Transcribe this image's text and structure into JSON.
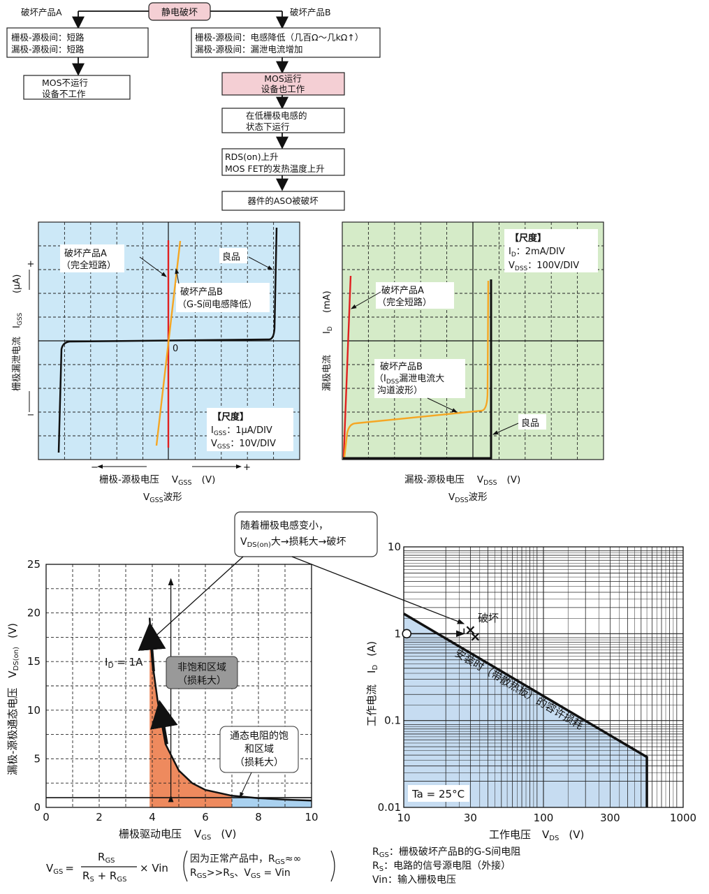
{
  "flow": {
    "top_label": "静电破坏",
    "branch_a": "破坏产品A",
    "branch_b": "破坏产品B",
    "a_box1_line1": "栅极-源极间：短路",
    "a_box1_line2": "漏极-源极间：短路",
    "a_box2_line1": "MOS不运行",
    "a_box2_line2": "设备不工作",
    "b_box1_line1": "栅极-源极间：电感降低（几百Ω～几kΩ↑）",
    "b_box1_line2": "漏极-源极间：漏泄电流增加",
    "b_box2_line1": "MOS运行",
    "b_box2_line2": "设备也工作",
    "b_box3_line1": "在低栅极电感的",
    "b_box3_line2": "状态下运行",
    "b_box4_line1": "RDS(on)上升",
    "b_box4_line2": "MOS FET的发热温度上升",
    "b_box5": "器件的ASO被破坏"
  },
  "vgss_panel": {
    "label_a_line1": "破坏产品A",
    "label_a_line2": "（完全短路）",
    "label_good": "良品",
    "label_b_line1": "破坏产品B",
    "label_b_line2": "（G-S间电感降低）",
    "zero": "0",
    "plus": "+",
    "minus": "−",
    "ylabel_main": "栅极漏泄电流",
    "ylabel_sym": "I",
    "ylabel_sub": "GSS",
    "ylabel_unit": "(μA)",
    "scale_title": "【尺度】",
    "scale_line1_sym": "I",
    "scale_line1_sub": "GSS",
    "scale_line1_val": "：1μA/DIV",
    "scale_line2_sym": "V",
    "scale_line2_sub": "GSS",
    "scale_line2_val": "：10V/DIV",
    "x_minus": "−",
    "x_plus": "+",
    "xlabel_main": "栅极-源极电压",
    "xlabel_sym": "V",
    "xlabel_sub": "GSS",
    "xlabel_unit": "(V)",
    "caption_sym": "V",
    "caption_sub": "GSS",
    "caption_rest": "波形",
    "colors": {
      "bg": "#cce8f7",
      "red": "#e02020",
      "orange": "#f5a623"
    }
  },
  "vdss_panel": {
    "scale_title": "【尺度】",
    "scale_line1_sym": "I",
    "scale_line1_sub": "D",
    "scale_line1_val": "：2mA/DIV",
    "scale_line2_sym": "V",
    "scale_line2_sub": "DSS",
    "scale_line2_val": "：100V/DIV",
    "label_a_line1": "破坏产品A",
    "label_a_line2": "（完全短路）",
    "label_b_line1": "破坏产品B",
    "label_b_line2_sym": "（I",
    "label_b_line2_sub": "DSS",
    "label_b_line2_rest": "漏泄电流大",
    "label_b_line3": "沟道波形）",
    "label_good": "良品",
    "ylabel_main": "漏极电流",
    "ylabel_sym": "I",
    "ylabel_sub": "D",
    "ylabel_unit": "(mA)",
    "xlabel_main": "漏极-源极电压",
    "xlabel_sym": "V",
    "xlabel_sub": "DSS",
    "xlabel_unit": "(V)",
    "caption_sym": "V",
    "caption_sub": "DSS",
    "caption_rest": "波形",
    "colors": {
      "bg": "#d5ebc8",
      "red": "#e02020",
      "orange": "#f5a623"
    }
  },
  "callout_top": {
    "line1": "随着栅极电感变小，",
    "line2_sym": "V",
    "line2_sub": "DS(on)",
    "line2_rest": "大→损耗大→破坏"
  },
  "chart_data": [
    {
      "type": "line",
      "xlabel_main": "栅极驱动电压",
      "xlabel_sym": "V",
      "xlabel_sub": "GS",
      "xlabel_unit": "(V)",
      "ylabel_main": "漏极-源极通态电压",
      "ylabel_sym": "V",
      "ylabel_sub": "DS(on)",
      "ylabel_unit": "(V)",
      "xlim": [
        0,
        10
      ],
      "ylim": [
        0,
        25
      ],
      "xticks": [
        "0",
        "2",
        "4",
        "6",
        "8",
        "10"
      ],
      "yticks": [
        "0",
        "5",
        "10",
        "15",
        "20",
        "25"
      ],
      "series": [
        {
          "name": "I_D = 1A",
          "x": [
            3.9,
            4.0,
            4.2,
            4.5,
            5.0,
            5.5,
            6.0,
            7.0,
            8.0,
            9.0,
            10.0
          ],
          "y": [
            19.5,
            15.0,
            11.0,
            6.5,
            3.8,
            2.5,
            1.8,
            1.2,
            0.95,
            0.8,
            0.7
          ]
        }
      ],
      "hline": 1.0,
      "id_label_sym": "I",
      "id_label_sub": "D",
      "id_label_rest": " = 1A",
      "region1_line1": "非饱和区域",
      "region1_line2": "（损耗大）",
      "region2_line1": "通态电阻的饱",
      "region2_line2": "和区域",
      "region2_line3": "（损耗大）",
      "colors": {
        "orange_fill": "#ee8a5e",
        "blue_fill": "#a9d1ef"
      }
    },
    {
      "type": "line",
      "scale": "log-log",
      "xlabel_main": "工作电压",
      "xlabel_sym": "V",
      "xlabel_sub": "DS",
      "xlabel_unit": "(V)",
      "ylabel_main": "工作电流",
      "ylabel_sym": "I",
      "ylabel_sub": "D",
      "ylabel_unit": "(A)",
      "xlim": [
        10,
        1000
      ],
      "ylim": [
        0.01,
        10
      ],
      "xticks": [
        "10",
        "30",
        "100",
        "300",
        "1000"
      ],
      "yticks": [
        "0.01",
        "0.1",
        "1",
        "10"
      ],
      "series": [
        {
          "name": "安装时（带散热板）的容许损耗",
          "x": [
            10,
            550,
            550
          ],
          "y": [
            1.7,
            0.038,
            0.01
          ]
        }
      ],
      "point_ok": {
        "x": 10.5,
        "y": 1.0
      },
      "point_break": {
        "x": 30,
        "y": 1.1
      },
      "break_label": "破坏",
      "ta_label": "Ta = 25°C",
      "colors": {
        "fill": "#c6dcf1"
      }
    }
  ],
  "formula": {
    "lhs_sym": "V",
    "lhs_sub": "GS",
    "eq": "=",
    "num_sym": "R",
    "num_sub": "GS",
    "den_1_sym": "R",
    "den_1_sub": "S",
    "den_plus": " + ",
    "den_2_sym": "R",
    "den_2_sub": "GS",
    "times": "× Vin",
    "note1_a": "因为正常产品中，R",
    "note1_sub": "GS",
    "note1_b": "≈∞",
    "note2_a": "R",
    "note2_sub1": "GS",
    "note2_b": ">>R",
    "note2_sub2": "S",
    "note2_c": "、V",
    "note2_sub3": "GS",
    "note2_d": " = Vin"
  },
  "legend_notes": {
    "n1_sym": "R",
    "n1_sub": "GS",
    "n1_text": "：栅极破坏产品B的G-S间电阻",
    "n2_sym": "R",
    "n2_sub": "S",
    "n2_text": "：电路的信号源电阻（外接）",
    "n3_text": "Vin：输入栅极电压"
  }
}
